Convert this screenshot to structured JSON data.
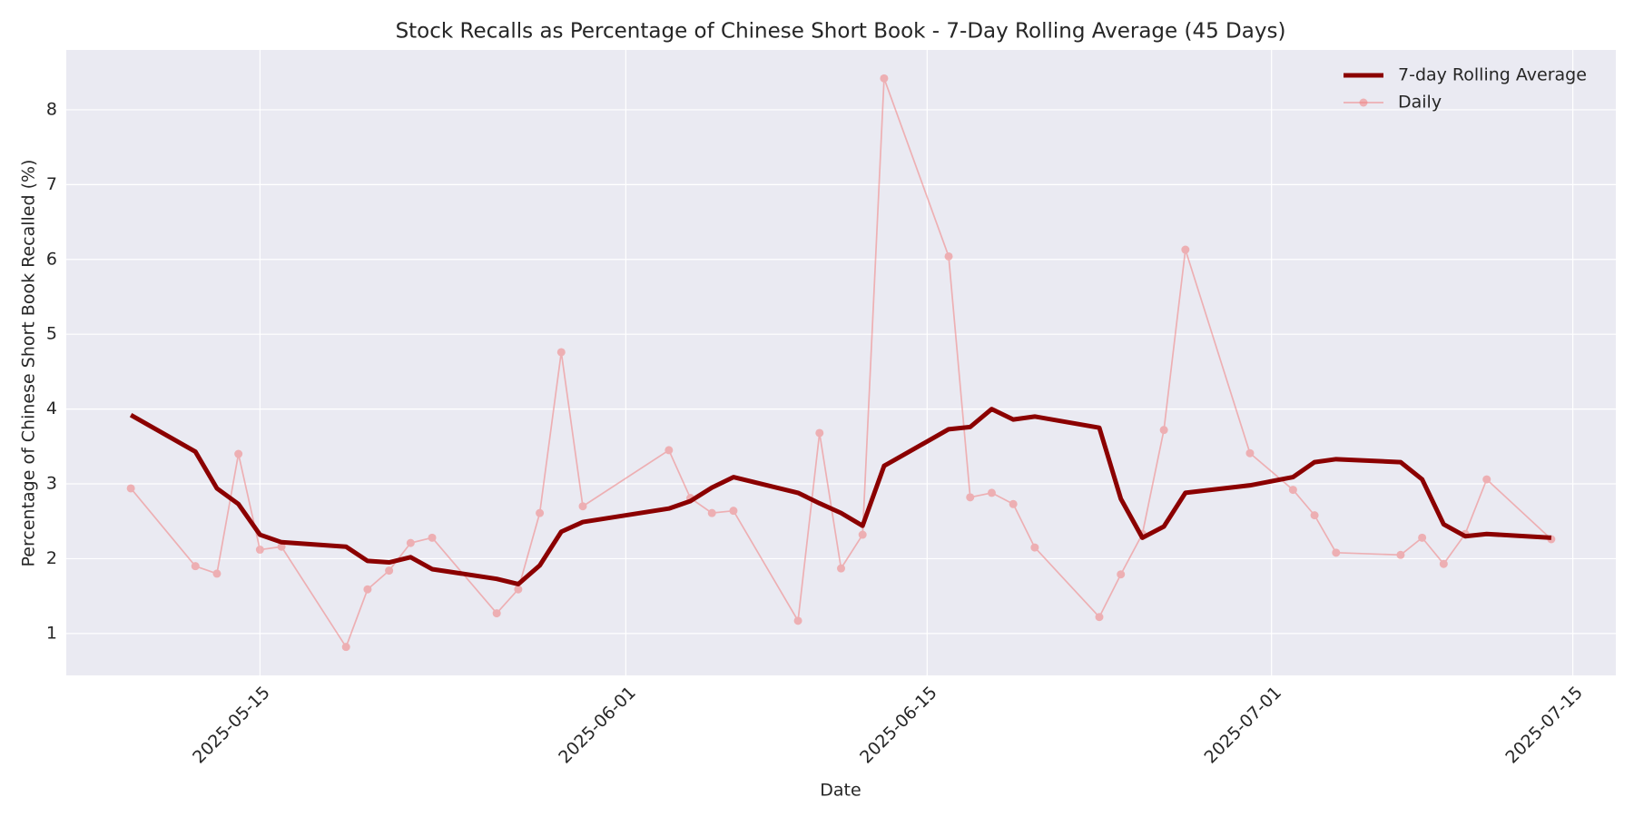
{
  "chart_data": {
    "type": "line",
    "title": "Stock Recalls as Percentage of Chinese Short Book - 7-Day Rolling Average (45 Days)",
    "x_label": "Date",
    "y_label": "Percentage of Chinese Short Book Recalled (%)",
    "x": [
      "2025-05-09",
      "2025-05-12",
      "2025-05-13",
      "2025-05-14",
      "2025-05-15",
      "2025-05-16",
      "2025-05-19",
      "2025-05-20",
      "2025-05-21",
      "2025-05-22",
      "2025-05-23",
      "2025-05-26",
      "2025-05-27",
      "2025-05-28",
      "2025-05-29",
      "2025-05-30",
      "2025-06-03",
      "2025-06-04",
      "2025-06-05",
      "2025-06-06",
      "2025-06-09",
      "2025-06-10",
      "2025-06-11",
      "2025-06-12",
      "2025-06-13",
      "2025-06-16",
      "2025-06-17",
      "2025-06-18",
      "2025-06-19",
      "2025-06-20",
      "2025-06-23",
      "2025-06-24",
      "2025-06-25",
      "2025-06-26",
      "2025-06-27",
      "2025-06-30",
      "2025-07-02",
      "2025-07-03",
      "2025-07-04",
      "2025-07-07",
      "2025-07-08",
      "2025-07-09",
      "2025-07-10",
      "2025-07-11",
      "2025-07-14"
    ],
    "series": [
      {
        "name": "7-day Rolling Average",
        "color": "#8b0000",
        "linewidth": 5,
        "marker": false,
        "opacity": 1,
        "values": [
          3.92,
          3.43,
          2.94,
          2.73,
          2.32,
          2.22,
          2.16,
          1.97,
          1.95,
          2.02,
          1.86,
          1.73,
          1.66,
          1.91,
          2.36,
          2.49,
          2.67,
          2.77,
          2.95,
          3.09,
          2.88,
          2.74,
          2.61,
          2.44,
          3.24,
          3.73,
          3.76,
          4.0,
          3.86,
          3.9,
          3.75,
          2.8,
          2.28,
          2.43,
          2.88,
          2.98,
          3.09,
          3.29,
          3.33,
          3.29,
          3.06,
          2.46,
          2.3,
          2.33,
          2.28
        ]
      },
      {
        "name": "Daily",
        "color": "#f08080",
        "linewidth": 1.7,
        "marker": true,
        "opacity": 0.55,
        "values": [
          2.94,
          1.9,
          1.8,
          3.4,
          2.12,
          2.16,
          0.82,
          1.59,
          1.84,
          2.21,
          2.28,
          1.27,
          1.59,
          2.61,
          4.76,
          2.7,
          3.45,
          2.81,
          2.61,
          2.64,
          1.17,
          3.68,
          1.87,
          2.32,
          8.42,
          6.04,
          2.82,
          2.88,
          2.73,
          2.15,
          1.22,
          1.79,
          2.33,
          3.72,
          6.13,
          3.41,
          2.92,
          2.58,
          2.08,
          2.05,
          2.28,
          1.93,
          2.33,
          3.06,
          2.26
        ]
      }
    ],
    "xlim": [
      "2025-05-06",
      "2025-07-17"
    ],
    "xticks": [
      "2025-05-15",
      "2025-06-01",
      "2025-06-15",
      "2025-07-01",
      "2025-07-15"
    ],
    "ylim": [
      0.44,
      8.8
    ],
    "yticks": [
      1,
      2,
      3,
      4,
      5,
      6,
      7,
      8
    ],
    "grid": true,
    "legend": "upper right"
  }
}
